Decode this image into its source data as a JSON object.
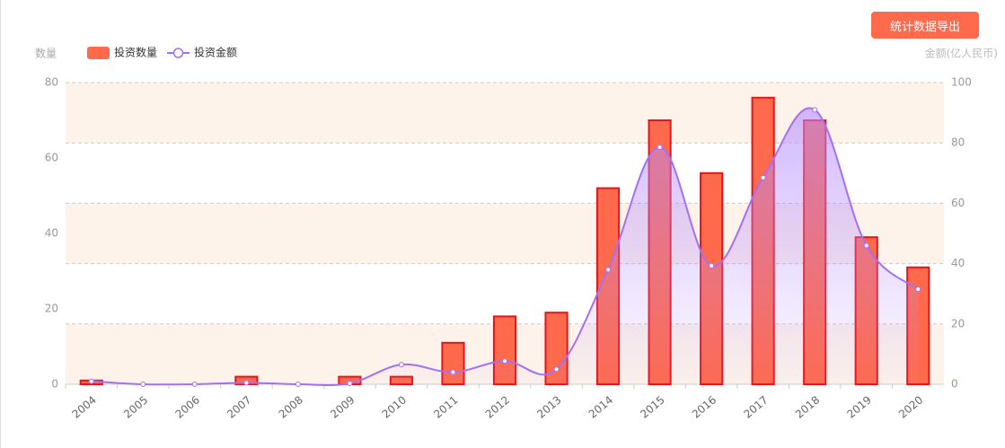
{
  "export_button": "统计数据导出",
  "chart_data": {
    "type": "bar",
    "y_label": "数量",
    "y2_label": "金额(亿人民币)",
    "categories": [
      "2004",
      "2005",
      "2006",
      "2007",
      "2008",
      "2009",
      "2010",
      "2011",
      "2012",
      "2013",
      "2014",
      "2015",
      "2016",
      "2017",
      "2018",
      "2019",
      "2020"
    ],
    "series": [
      {
        "name": "投资数量",
        "type": "bar",
        "color": "#ff6a4d",
        "values": [
          1,
          0,
          0,
          2,
          0,
          2,
          2,
          11,
          18,
          19,
          52,
          70,
          56,
          76,
          70,
          39,
          31
        ]
      },
      {
        "name": "投资金额",
        "type": "line",
        "axis": "y2",
        "color": "#a66ff2",
        "values": [
          1,
          0,
          0,
          0.5,
          0,
          0.3,
          6.5,
          4,
          7.7,
          5,
          38,
          78.6,
          39.3,
          68.5,
          91,
          46,
          31.5
        ]
      }
    ],
    "ylim": [
      0,
      80
    ],
    "yticks": [
      0,
      20,
      40,
      60,
      80
    ],
    "y2lim": [
      0,
      100
    ],
    "y2ticks": [
      0,
      20,
      40,
      60,
      80,
      100
    ],
    "grid": true
  }
}
